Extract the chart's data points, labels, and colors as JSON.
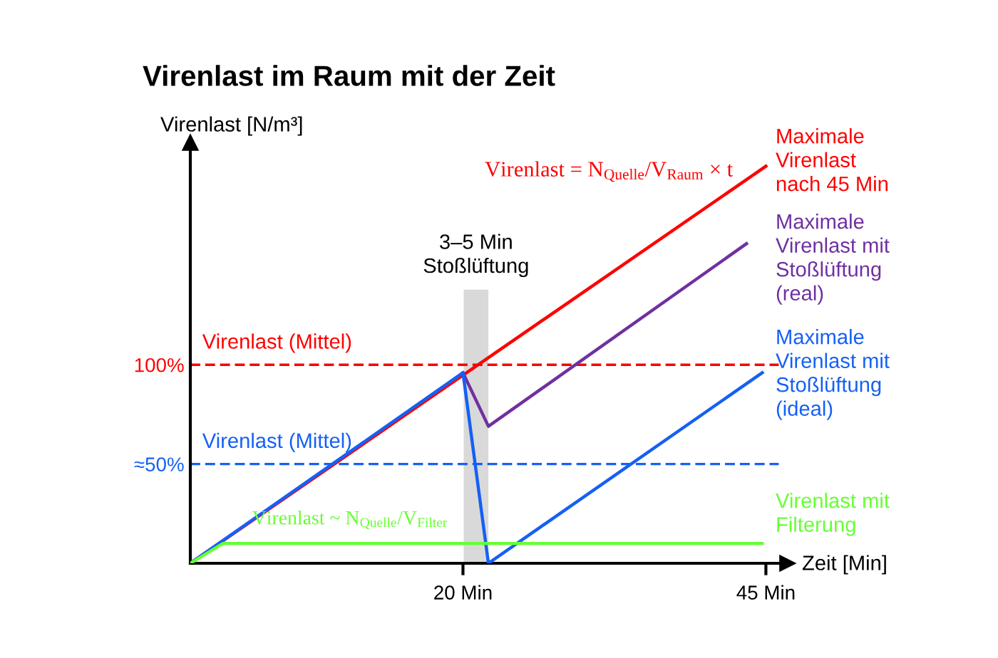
{
  "chart_data": {
    "type": "line",
    "title": "Virenlast im Raum mit der Zeit",
    "xlabel": "Zeit [Min]",
    "ylabel": "Virenlast [N/m³]",
    "xlim": [
      -2.5,
      46.8
    ],
    "ylim": [
      0,
      212
    ],
    "xticks": [
      {
        "value": 20,
        "label": "20 Min"
      },
      {
        "value": 45,
        "label": "45 Min"
      }
    ],
    "yticks": [
      {
        "value": 100,
        "label": "100%"
      },
      {
        "value": 50,
        "label": "≈50%"
      }
    ],
    "series": [
      {
        "name": "Maximale\nVirenlast\nnach 45 Min",
        "color": "#ff0000",
        "x": [
          -2.5,
          45
        ],
        "values": [
          0,
          200
        ]
      },
      {
        "name": "Maximale\nVirenlast mit\nStoßlüftung\n(real)",
        "color": "#7030a0",
        "x": [
          20,
          22.1,
          43.4
        ],
        "values": [
          96,
          69,
          161
        ]
      },
      {
        "name": "Maximale\nVirenlast mit\nStoßlüftung\n(ideal)",
        "color": "#1560f5",
        "x": [
          -2.5,
          20,
          22.1,
          44.7
        ],
        "values": [
          0,
          96,
          0,
          96
        ]
      },
      {
        "name": "Virenlast mit\nFilterung",
        "color": "#66ff33",
        "x": [
          -2.5,
          0.2,
          44.7
        ],
        "values": [
          0,
          10,
          10
        ]
      }
    ],
    "ref_lines": [
      {
        "axis": "y",
        "value": 100,
        "label": "Virenlast (Mittel)",
        "color": "#ff0000",
        "line_style": "dashed"
      },
      {
        "axis": "y",
        "value": 50,
        "label": "Virenlast (Mittel)",
        "color": "#1560f5",
        "line_style": "dashed"
      }
    ],
    "bands": [
      {
        "axis": "x",
        "from": 20.06,
        "to": 22.1,
        "label": "3–5 Min\nStoßlüftung",
        "color": "#d9d9d9"
      }
    ],
    "annotations": [
      "Virenlast = N$_{Quelle}$/V$_{Raum}$ × t",
      "Virenlast ~ N$_{Quelle}$/V$_{Filter}$"
    ],
    "grid": false,
    "marker": "none",
    "line_style": "solid"
  }
}
